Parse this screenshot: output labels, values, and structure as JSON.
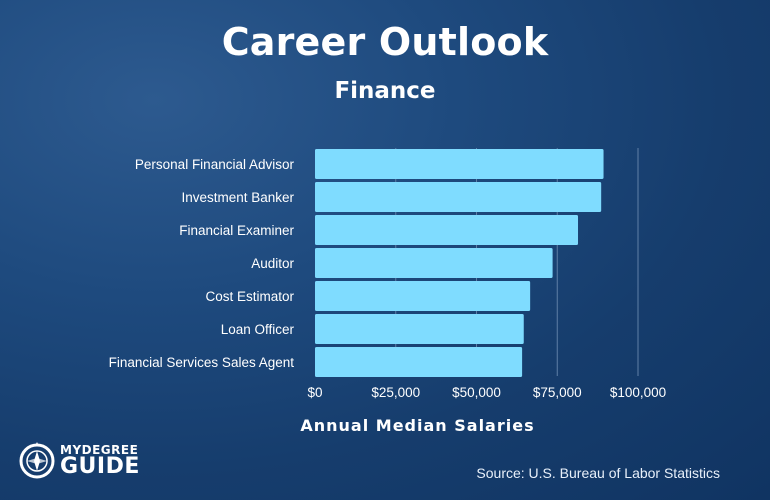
{
  "header": {
    "title": "Career Outlook",
    "subtitle": "Finance"
  },
  "logo": {
    "line1": "MYDEGREE",
    "line2": "GUIDE",
    "icon": "compass-icon"
  },
  "source": "Source: U.S. Bureau of Labor Statistics",
  "colors": {
    "bar": "#7fdcff",
    "gridline": "#5f7fa6",
    "text": "#ffffff"
  },
  "chart_data": {
    "type": "bar",
    "orientation": "horizontal",
    "categories": [
      "Personal Financial Advisor",
      "Investment Banker",
      "Financial Examiner",
      "Auditor",
      "Cost Estimator",
      "Loan Officer",
      "Financial Services Sales Agent"
    ],
    "values": [
      89330,
      88600,
      81430,
      73560,
      66610,
      64630,
      64120
    ],
    "xlabel": "Annual Median Salaries",
    "xlim": [
      0,
      100000
    ],
    "xticks": [
      0,
      25000,
      50000,
      75000,
      100000
    ],
    "xtick_labels": [
      "$0",
      "$25,000",
      "$50,000",
      "$75,000",
      "$100,000"
    ],
    "grid": "vertical",
    "legend": "none"
  }
}
